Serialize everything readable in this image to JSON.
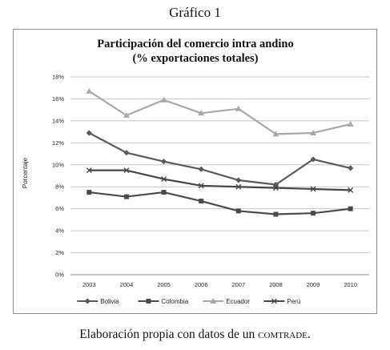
{
  "figure_label": "Gráfico 1",
  "caption": {
    "text": "Elaboración propia con datos de un",
    "source": "comtrade."
  },
  "chart_data": {
    "type": "line",
    "title": "Participación del comercio intra andino",
    "subtitle": "(% exportaciones totales)",
    "xlabel": "",
    "ylabel": "Porcentaje",
    "x": [
      "2003",
      "2004",
      "2005",
      "2006",
      "2007",
      "2008",
      "2009",
      "2010"
    ],
    "ylim": [
      0,
      18
    ],
    "yticks": [
      "0%",
      "2%",
      "4%",
      "6%",
      "8%",
      "10%",
      "12%",
      "14%",
      "16%",
      "18%"
    ],
    "grid": true,
    "legend_position": "bottom",
    "series": [
      {
        "name": "Bolivia",
        "marker": "diamond",
        "color": "#5a5a5a",
        "values": [
          12.9,
          11.1,
          10.3,
          9.6,
          8.6,
          8.2,
          10.5,
          9.7
        ]
      },
      {
        "name": "Colombia",
        "marker": "square",
        "color": "#4a4a4a",
        "values": [
          7.5,
          7.1,
          7.5,
          6.7,
          5.8,
          5.5,
          5.6,
          6.0
        ]
      },
      {
        "name": "Ecuador",
        "marker": "triangle",
        "color": "#a8a8a8",
        "values": [
          16.7,
          14.5,
          15.9,
          14.7,
          15.1,
          12.8,
          12.9,
          13.7
        ]
      },
      {
        "name": "Perú",
        "marker": "x",
        "color": "#474747",
        "values": [
          9.5,
          9.5,
          8.7,
          8.1,
          8.0,
          7.9,
          7.8,
          7.7
        ]
      }
    ]
  }
}
